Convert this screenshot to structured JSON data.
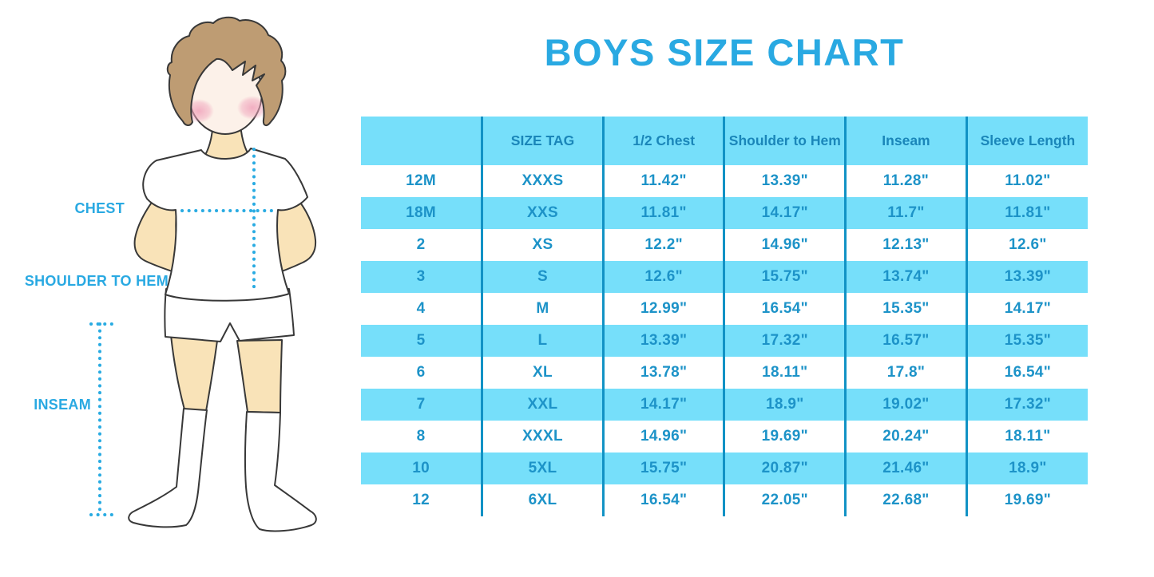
{
  "title": "BOYS SIZE CHART",
  "illustration": {
    "description": "outline drawing of a boy in white t-shirt, shorts and knee socks with measurement guides",
    "labels": {
      "chest": "CHEST",
      "shoulder_to_hem": "SHOULDER TO HEM",
      "inseam": "INSEAM"
    }
  },
  "chart_data": {
    "type": "table",
    "title": "BOYS SIZE CHART",
    "columns": [
      "",
      "SIZE TAG",
      "1/2 Chest",
      "Shoulder to Hem",
      "Inseam",
      "Sleeve Length"
    ],
    "column_keys": [
      "size",
      "size-tag",
      "half-chest",
      "shoulder-to-hem",
      "inseam",
      "sleeve-length"
    ],
    "rows": [
      [
        "12M",
        "XXXS",
        "11.42\"",
        "13.39\"",
        "11.28\"",
        "11.02\""
      ],
      [
        "18M",
        "XXS",
        "11.81\"",
        "14.17\"",
        "11.7\"",
        "11.81\""
      ],
      [
        "2",
        "XS",
        "12.2\"",
        "14.96\"",
        "12.13\"",
        "12.6\""
      ],
      [
        "3",
        "S",
        "12.6\"",
        "15.75\"",
        "13.74\"",
        "13.39\""
      ],
      [
        "4",
        "M",
        "12.99\"",
        "16.54\"",
        "15.35\"",
        "14.17\""
      ],
      [
        "5",
        "L",
        "13.39\"",
        "17.32\"",
        "16.57\"",
        "15.35\""
      ],
      [
        "6",
        "XL",
        "13.78\"",
        "18.11\"",
        "17.8\"",
        "16.54\""
      ],
      [
        "7",
        "XXL",
        "14.17\"",
        "18.9\"",
        "19.02\"",
        "17.32\""
      ],
      [
        "8",
        "XXXL",
        "14.96\"",
        "19.69\"",
        "20.24\"",
        "18.11\""
      ],
      [
        "10",
        "5XL",
        "15.75\"",
        "20.87\"",
        "21.46\"",
        "18.9\""
      ],
      [
        "12",
        "6XL",
        "16.54\"",
        "22.05\"",
        "22.68\"",
        "19.69\""
      ]
    ],
    "layout_hints": {
      "header_background": "#76DFFA",
      "row_striping": "odd rows white, even rows cyan",
      "column_dividers_only": true
    }
  },
  "colors": {
    "title_blue": "#29A9E2",
    "dotted_line_blue": "#29ABE2",
    "row_cyan": "#76DFFA",
    "divider_blue": "#1192C5",
    "table_text_blue": "#1D93C8",
    "header_text_blue": "#1A86B9",
    "hair_brown": "#BE9C73",
    "skin_tan": "#F9E3B8",
    "face_pale": "#FCF1E9",
    "blush_pink": "#F0A3BB",
    "outline_dark": "#383838"
  }
}
